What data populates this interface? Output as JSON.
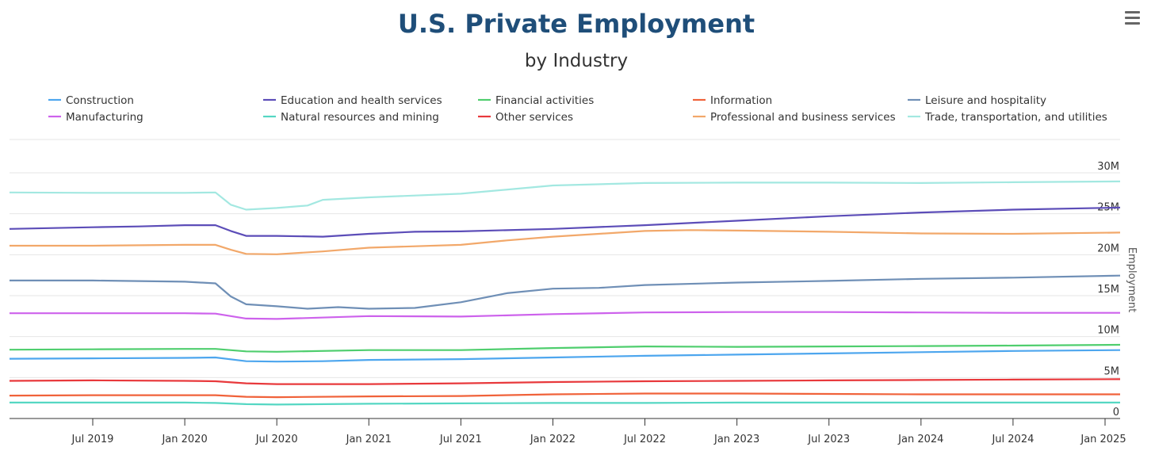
{
  "menu_icon": "hamburger-menu-icon",
  "chart_data": {
    "type": "line",
    "title": "U.S. Private Employment",
    "subtitle": "by Industry",
    "xlabel": "",
    "ylabel": "Employment",
    "x_ticks": [
      "Jul 2019",
      "Jan 2020",
      "Jul 2020",
      "Jan 2021",
      "Jul 2021",
      "Jan 2022",
      "Jul 2022",
      "Jan 2023",
      "Jul 2023",
      "Jan 2024",
      "Jul 2024",
      "Jan 2025"
    ],
    "y_ticks": [
      "0",
      "5M",
      "10M",
      "15M",
      "20M",
      "25M",
      "30M"
    ],
    "ylim": [
      0,
      30000000
    ],
    "xlim": [
      "2019-01",
      "2025-02"
    ],
    "grid": true,
    "legend_placement": "top",
    "series": [
      {
        "name": "Construction",
        "color": "#4da6ee",
        "points": [
          [
            "2019-01",
            7.3
          ],
          [
            "2019-07",
            7.35
          ],
          [
            "2020-01",
            7.4
          ],
          [
            "2020-03",
            7.45
          ],
          [
            "2020-05",
            7.0
          ],
          [
            "2020-07",
            6.95
          ],
          [
            "2020-10",
            7.0
          ],
          [
            "2021-01",
            7.15
          ],
          [
            "2021-07",
            7.25
          ],
          [
            "2022-01",
            7.45
          ],
          [
            "2022-07",
            7.65
          ],
          [
            "2023-01",
            7.8
          ],
          [
            "2023-07",
            7.95
          ],
          [
            "2024-01",
            8.1
          ],
          [
            "2024-07",
            8.25
          ],
          [
            "2025-02",
            8.35
          ]
        ]
      },
      {
        "name": "Education and health services",
        "color": "#5c4db8",
        "points": [
          [
            "2019-01",
            23.15
          ],
          [
            "2019-07",
            23.35
          ],
          [
            "2019-10",
            23.45
          ],
          [
            "2020-01",
            23.6
          ],
          [
            "2020-03",
            23.6
          ],
          [
            "2020-04",
            22.9
          ],
          [
            "2020-05",
            22.3
          ],
          [
            "2020-07",
            22.3
          ],
          [
            "2020-10",
            22.2
          ],
          [
            "2021-01",
            22.55
          ],
          [
            "2021-04",
            22.8
          ],
          [
            "2021-07",
            22.85
          ],
          [
            "2022-01",
            23.15
          ],
          [
            "2022-07",
            23.6
          ],
          [
            "2023-01",
            24.15
          ],
          [
            "2023-07",
            24.7
          ],
          [
            "2024-01",
            25.15
          ],
          [
            "2024-07",
            25.5
          ],
          [
            "2025-02",
            25.75
          ]
        ]
      },
      {
        "name": "Financial activities",
        "color": "#4fce6e",
        "points": [
          [
            "2019-01",
            8.4
          ],
          [
            "2019-07",
            8.45
          ],
          [
            "2020-01",
            8.5
          ],
          [
            "2020-03",
            8.5
          ],
          [
            "2020-05",
            8.2
          ],
          [
            "2020-07",
            8.15
          ],
          [
            "2021-01",
            8.35
          ],
          [
            "2021-07",
            8.35
          ],
          [
            "2022-01",
            8.6
          ],
          [
            "2022-07",
            8.8
          ],
          [
            "2023-01",
            8.75
          ],
          [
            "2023-07",
            8.8
          ],
          [
            "2024-01",
            8.85
          ],
          [
            "2024-07",
            8.9
          ],
          [
            "2025-02",
            9.0
          ]
        ]
      },
      {
        "name": "Information",
        "color": "#f0623a",
        "points": [
          [
            "2019-01",
            2.8
          ],
          [
            "2019-07",
            2.85
          ],
          [
            "2020-01",
            2.85
          ],
          [
            "2020-03",
            2.85
          ],
          [
            "2020-05",
            2.65
          ],
          [
            "2020-07",
            2.6
          ],
          [
            "2021-01",
            2.7
          ],
          [
            "2021-07",
            2.75
          ],
          [
            "2022-01",
            2.95
          ],
          [
            "2022-07",
            3.05
          ],
          [
            "2023-01",
            3.05
          ],
          [
            "2023-07",
            3.0
          ],
          [
            "2024-01",
            2.95
          ],
          [
            "2024-07",
            2.95
          ],
          [
            "2025-02",
            2.95
          ]
        ]
      },
      {
        "name": "Leisure and hospitality",
        "color": "#6f8fb6",
        "points": [
          [
            "2019-01",
            16.85
          ],
          [
            "2019-07",
            16.85
          ],
          [
            "2020-01",
            16.7
          ],
          [
            "2020-03",
            16.5
          ],
          [
            "2020-04",
            14.9
          ],
          [
            "2020-05",
            13.95
          ],
          [
            "2020-07",
            13.7
          ],
          [
            "2020-09",
            13.4
          ],
          [
            "2020-11",
            13.6
          ],
          [
            "2021-01",
            13.4
          ],
          [
            "2021-04",
            13.5
          ],
          [
            "2021-07",
            14.2
          ],
          [
            "2021-10",
            15.3
          ],
          [
            "2022-01",
            15.85
          ],
          [
            "2022-04",
            15.95
          ],
          [
            "2022-07",
            16.3
          ],
          [
            "2023-01",
            16.6
          ],
          [
            "2023-07",
            16.8
          ],
          [
            "2024-01",
            17.05
          ],
          [
            "2024-07",
            17.2
          ],
          [
            "2025-02",
            17.45
          ]
        ]
      },
      {
        "name": "Manufacturing",
        "color": "#cd62ec",
        "points": [
          [
            "2019-01",
            12.85
          ],
          [
            "2019-07",
            12.85
          ],
          [
            "2020-01",
            12.85
          ],
          [
            "2020-03",
            12.8
          ],
          [
            "2020-05",
            12.2
          ],
          [
            "2020-07",
            12.15
          ],
          [
            "2021-01",
            12.5
          ],
          [
            "2021-07",
            12.45
          ],
          [
            "2022-01",
            12.75
          ],
          [
            "2022-07",
            12.95
          ],
          [
            "2023-01",
            13.0
          ],
          [
            "2023-07",
            13.0
          ],
          [
            "2024-01",
            12.95
          ],
          [
            "2024-07",
            12.9
          ],
          [
            "2025-02",
            12.9
          ]
        ]
      },
      {
        "name": "Natural resources and mining",
        "color": "#55d7c3",
        "points": [
          [
            "2019-01",
            1.95
          ],
          [
            "2019-07",
            1.95
          ],
          [
            "2020-01",
            1.95
          ],
          [
            "2020-03",
            1.9
          ],
          [
            "2020-05",
            1.75
          ],
          [
            "2020-07",
            1.7
          ],
          [
            "2021-01",
            1.8
          ],
          [
            "2021-07",
            1.85
          ],
          [
            "2022-01",
            1.9
          ],
          [
            "2022-07",
            1.9
          ],
          [
            "2023-01",
            1.95
          ],
          [
            "2023-07",
            1.95
          ],
          [
            "2024-01",
            1.95
          ],
          [
            "2024-07",
            1.95
          ],
          [
            "2025-02",
            1.95
          ]
        ]
      },
      {
        "name": "Other services",
        "color": "#e8393c",
        "points": [
          [
            "2019-01",
            4.6
          ],
          [
            "2019-07",
            4.65
          ],
          [
            "2020-01",
            4.6
          ],
          [
            "2020-03",
            4.55
          ],
          [
            "2020-05",
            4.3
          ],
          [
            "2020-07",
            4.2
          ],
          [
            "2021-01",
            4.2
          ],
          [
            "2021-07",
            4.3
          ],
          [
            "2022-01",
            4.45
          ],
          [
            "2022-07",
            4.55
          ],
          [
            "2023-01",
            4.6
          ],
          [
            "2023-07",
            4.65
          ],
          [
            "2024-01",
            4.7
          ],
          [
            "2024-07",
            4.75
          ],
          [
            "2025-02",
            4.8
          ]
        ]
      },
      {
        "name": "Professional and business services",
        "color": "#f2a86a",
        "points": [
          [
            "2019-01",
            21.1
          ],
          [
            "2019-07",
            21.1
          ],
          [
            "2020-01",
            21.2
          ],
          [
            "2020-03",
            21.2
          ],
          [
            "2020-04",
            20.6
          ],
          [
            "2020-05",
            20.1
          ],
          [
            "2020-07",
            20.05
          ],
          [
            "2020-10",
            20.4
          ],
          [
            "2021-01",
            20.85
          ],
          [
            "2021-07",
            21.2
          ],
          [
            "2021-10",
            21.75
          ],
          [
            "2022-01",
            22.2
          ],
          [
            "2022-04",
            22.55
          ],
          [
            "2022-07",
            22.9
          ],
          [
            "2022-10",
            23.0
          ],
          [
            "2023-01",
            22.95
          ],
          [
            "2023-07",
            22.8
          ],
          [
            "2024-01",
            22.6
          ],
          [
            "2024-07",
            22.55
          ],
          [
            "2025-02",
            22.7
          ]
        ]
      },
      {
        "name": "Trade, transportation, and utilities",
        "color": "#a3e8e1",
        "points": [
          [
            "2019-01",
            27.6
          ],
          [
            "2019-07",
            27.55
          ],
          [
            "2020-01",
            27.55
          ],
          [
            "2020-03",
            27.6
          ],
          [
            "2020-04",
            26.1
          ],
          [
            "2020-05",
            25.5
          ],
          [
            "2020-07",
            25.7
          ],
          [
            "2020-09",
            26.0
          ],
          [
            "2020-10",
            26.7
          ],
          [
            "2021-01",
            27.0
          ],
          [
            "2021-07",
            27.45
          ],
          [
            "2022-01",
            28.45
          ],
          [
            "2022-07",
            28.75
          ],
          [
            "2023-01",
            28.8
          ],
          [
            "2023-07",
            28.8
          ],
          [
            "2024-01",
            28.75
          ],
          [
            "2024-07",
            28.85
          ],
          [
            "2025-02",
            28.95
          ]
        ]
      }
    ]
  }
}
